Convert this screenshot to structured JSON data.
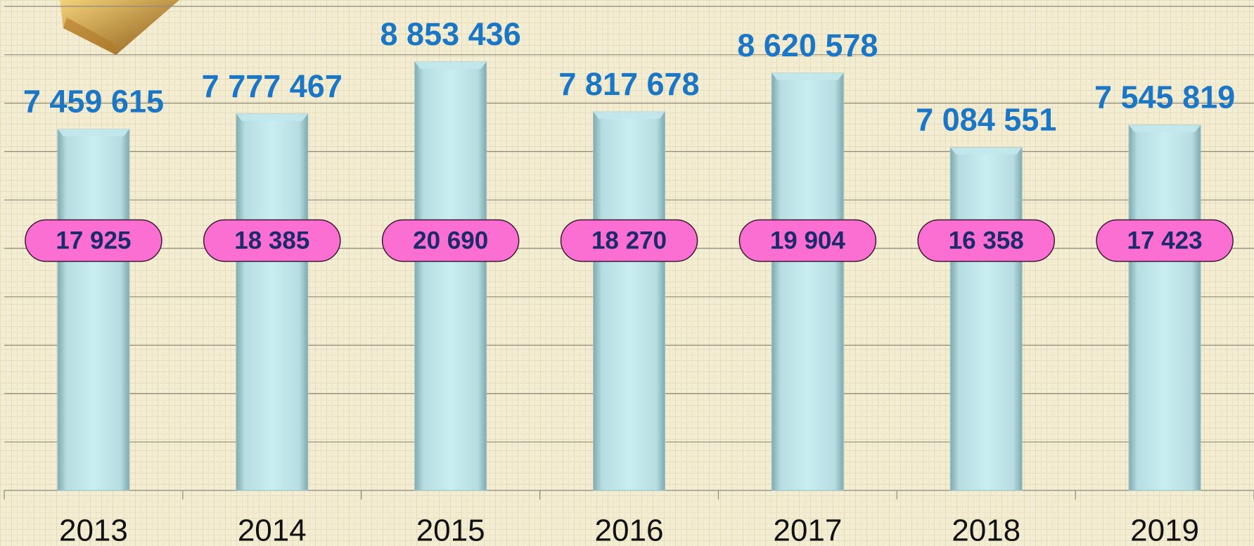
{
  "chart_data": {
    "type": "bar",
    "categories": [
      "2013",
      "2014",
      "2015",
      "2016",
      "2017",
      "2018",
      "2019"
    ],
    "series": [
      {
        "values": [
          7459615,
          7777467,
          8853436,
          7817678,
          8620578,
          7084551,
          7545819
        ],
        "value_labels": [
          "7 459 615",
          "7 777 467",
          "8 853 436",
          "7 817 678",
          "8 620 578",
          "7 084 551",
          "7 545 819"
        ],
        "color": "#c2e8ec",
        "label_color": "#1b76c6"
      },
      {
        "values": [
          17925,
          18385,
          20690,
          18270,
          19904,
          16358,
          17423
        ],
        "value_labels": [
          "17 925",
          "18 385",
          "20 690",
          "18 270",
          "19 904",
          "16 358",
          "17 423"
        ],
        "color": "#fb6fd2",
        "label_color": "#1a2a6a",
        "style": "oval-label"
      }
    ],
    "ylim": [
      0,
      10000000
    ],
    "yticks": [
      0,
      1000000,
      2000000,
      3000000,
      4000000,
      5000000,
      6000000,
      7000000,
      8000000,
      9000000,
      10000000
    ],
    "show_ytick_labels": false,
    "grid": true
  }
}
